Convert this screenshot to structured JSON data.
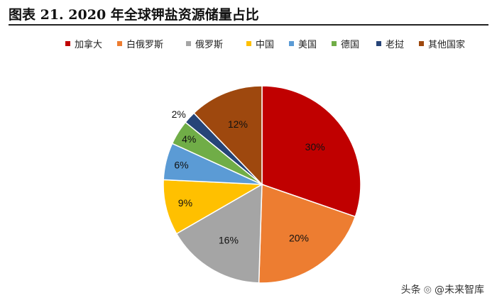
{
  "figure": {
    "title": "图表 21. 2020 年全球钾盐资源储量占比"
  },
  "watermark": {
    "prefix": "头条",
    "account": "@未来智库",
    "icon": "at-sign-icon"
  },
  "chart_data": {
    "type": "pie",
    "title": "",
    "legend_position": "top",
    "start_angle_deg": 0,
    "direction": "clockwise",
    "categories": [
      "加拿大",
      "白俄罗斯",
      "俄罗斯",
      "中国",
      "美国",
      "德国",
      "老挝",
      "其他国家"
    ],
    "values": [
      30,
      20,
      16,
      9,
      6,
      4,
      2,
      12
    ],
    "labels": [
      "30%",
      "20%",
      "16%",
      "9%",
      "6%",
      "4%",
      "2%",
      "12%"
    ],
    "colors": [
      "#C00000",
      "#ED7D31",
      "#A5A5A5",
      "#FFC000",
      "#5B9BD5",
      "#70AD47",
      "#264478",
      "#9E480E"
    ]
  }
}
